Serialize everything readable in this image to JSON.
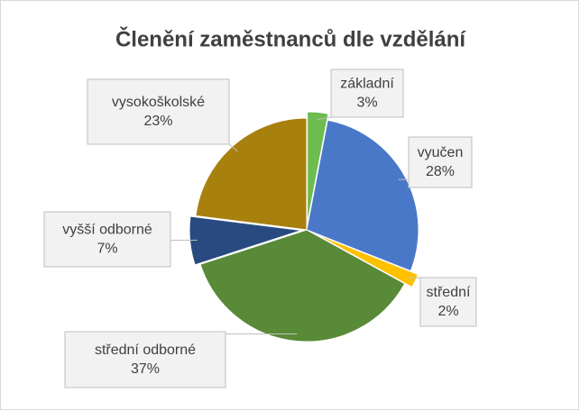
{
  "chart_data": {
    "type": "pie",
    "title": "Členění zaměstnanců dle vzdělání",
    "categories": [
      "základní",
      "vyučen",
      "střední",
      "střední odborné",
      "vyšší odborné",
      "vysokoškolské"
    ],
    "values": [
      3,
      28,
      2,
      37,
      7,
      23
    ],
    "value_labels": [
      "3%",
      "28%",
      "2%",
      "37%",
      "7%",
      "23%"
    ],
    "colors": [
      "#6cbc4f",
      "#4a78c8",
      "#ffc000",
      "#588a38",
      "#284a80",
      "#a8800e"
    ]
  }
}
